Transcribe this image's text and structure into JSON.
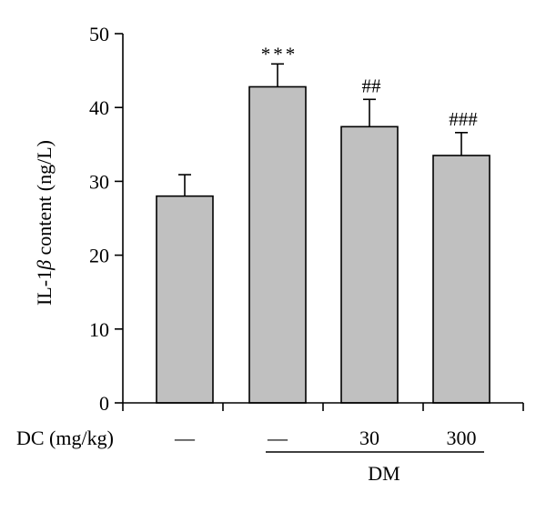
{
  "chart_data": {
    "type": "bar",
    "ylabel_prefix": "IL-1",
    "ylabel_symbol": "β",
    "ylabel_suffix": " content (ng/L)",
    "ylim": [
      0,
      50
    ],
    "yticks": [
      "0",
      "10",
      "20",
      "30",
      "40",
      "50"
    ],
    "values": [
      28,
      42.8,
      37.4,
      33.5
    ],
    "errors": [
      2.9,
      3.1,
      3.7,
      3.1
    ],
    "annotations": [
      "",
      "***",
      "##",
      "###"
    ],
    "dc_row_label": "DC (mg/kg)",
    "dc_values": [
      "—",
      "—",
      "30",
      "300"
    ],
    "group_label": "DM",
    "bar_color": "#c0c0c0",
    "grid": false
  }
}
